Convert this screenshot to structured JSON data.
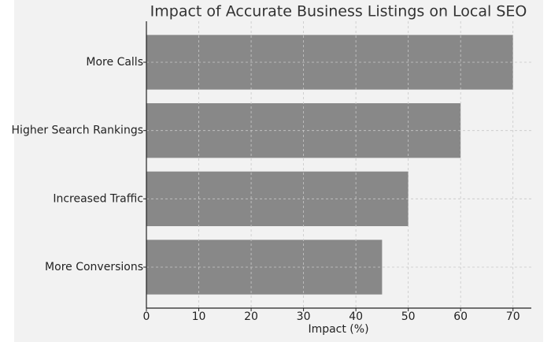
{
  "chart_data": {
    "type": "barh",
    "title": "Impact of Accurate Business Listings on Local SEO",
    "x_label": "Impact (%)",
    "categories": [
      "More Calls",
      "Higher Search Rankings",
      "Increased Traffic",
      "More Conversions"
    ],
    "values": [
      70,
      60,
      50,
      45
    ],
    "color": "#888888",
    "xlim": [
      0,
      73.5
    ],
    "xticks": [
      0,
      10,
      20,
      30,
      40,
      50,
      60,
      70
    ],
    "grid": true
  }
}
